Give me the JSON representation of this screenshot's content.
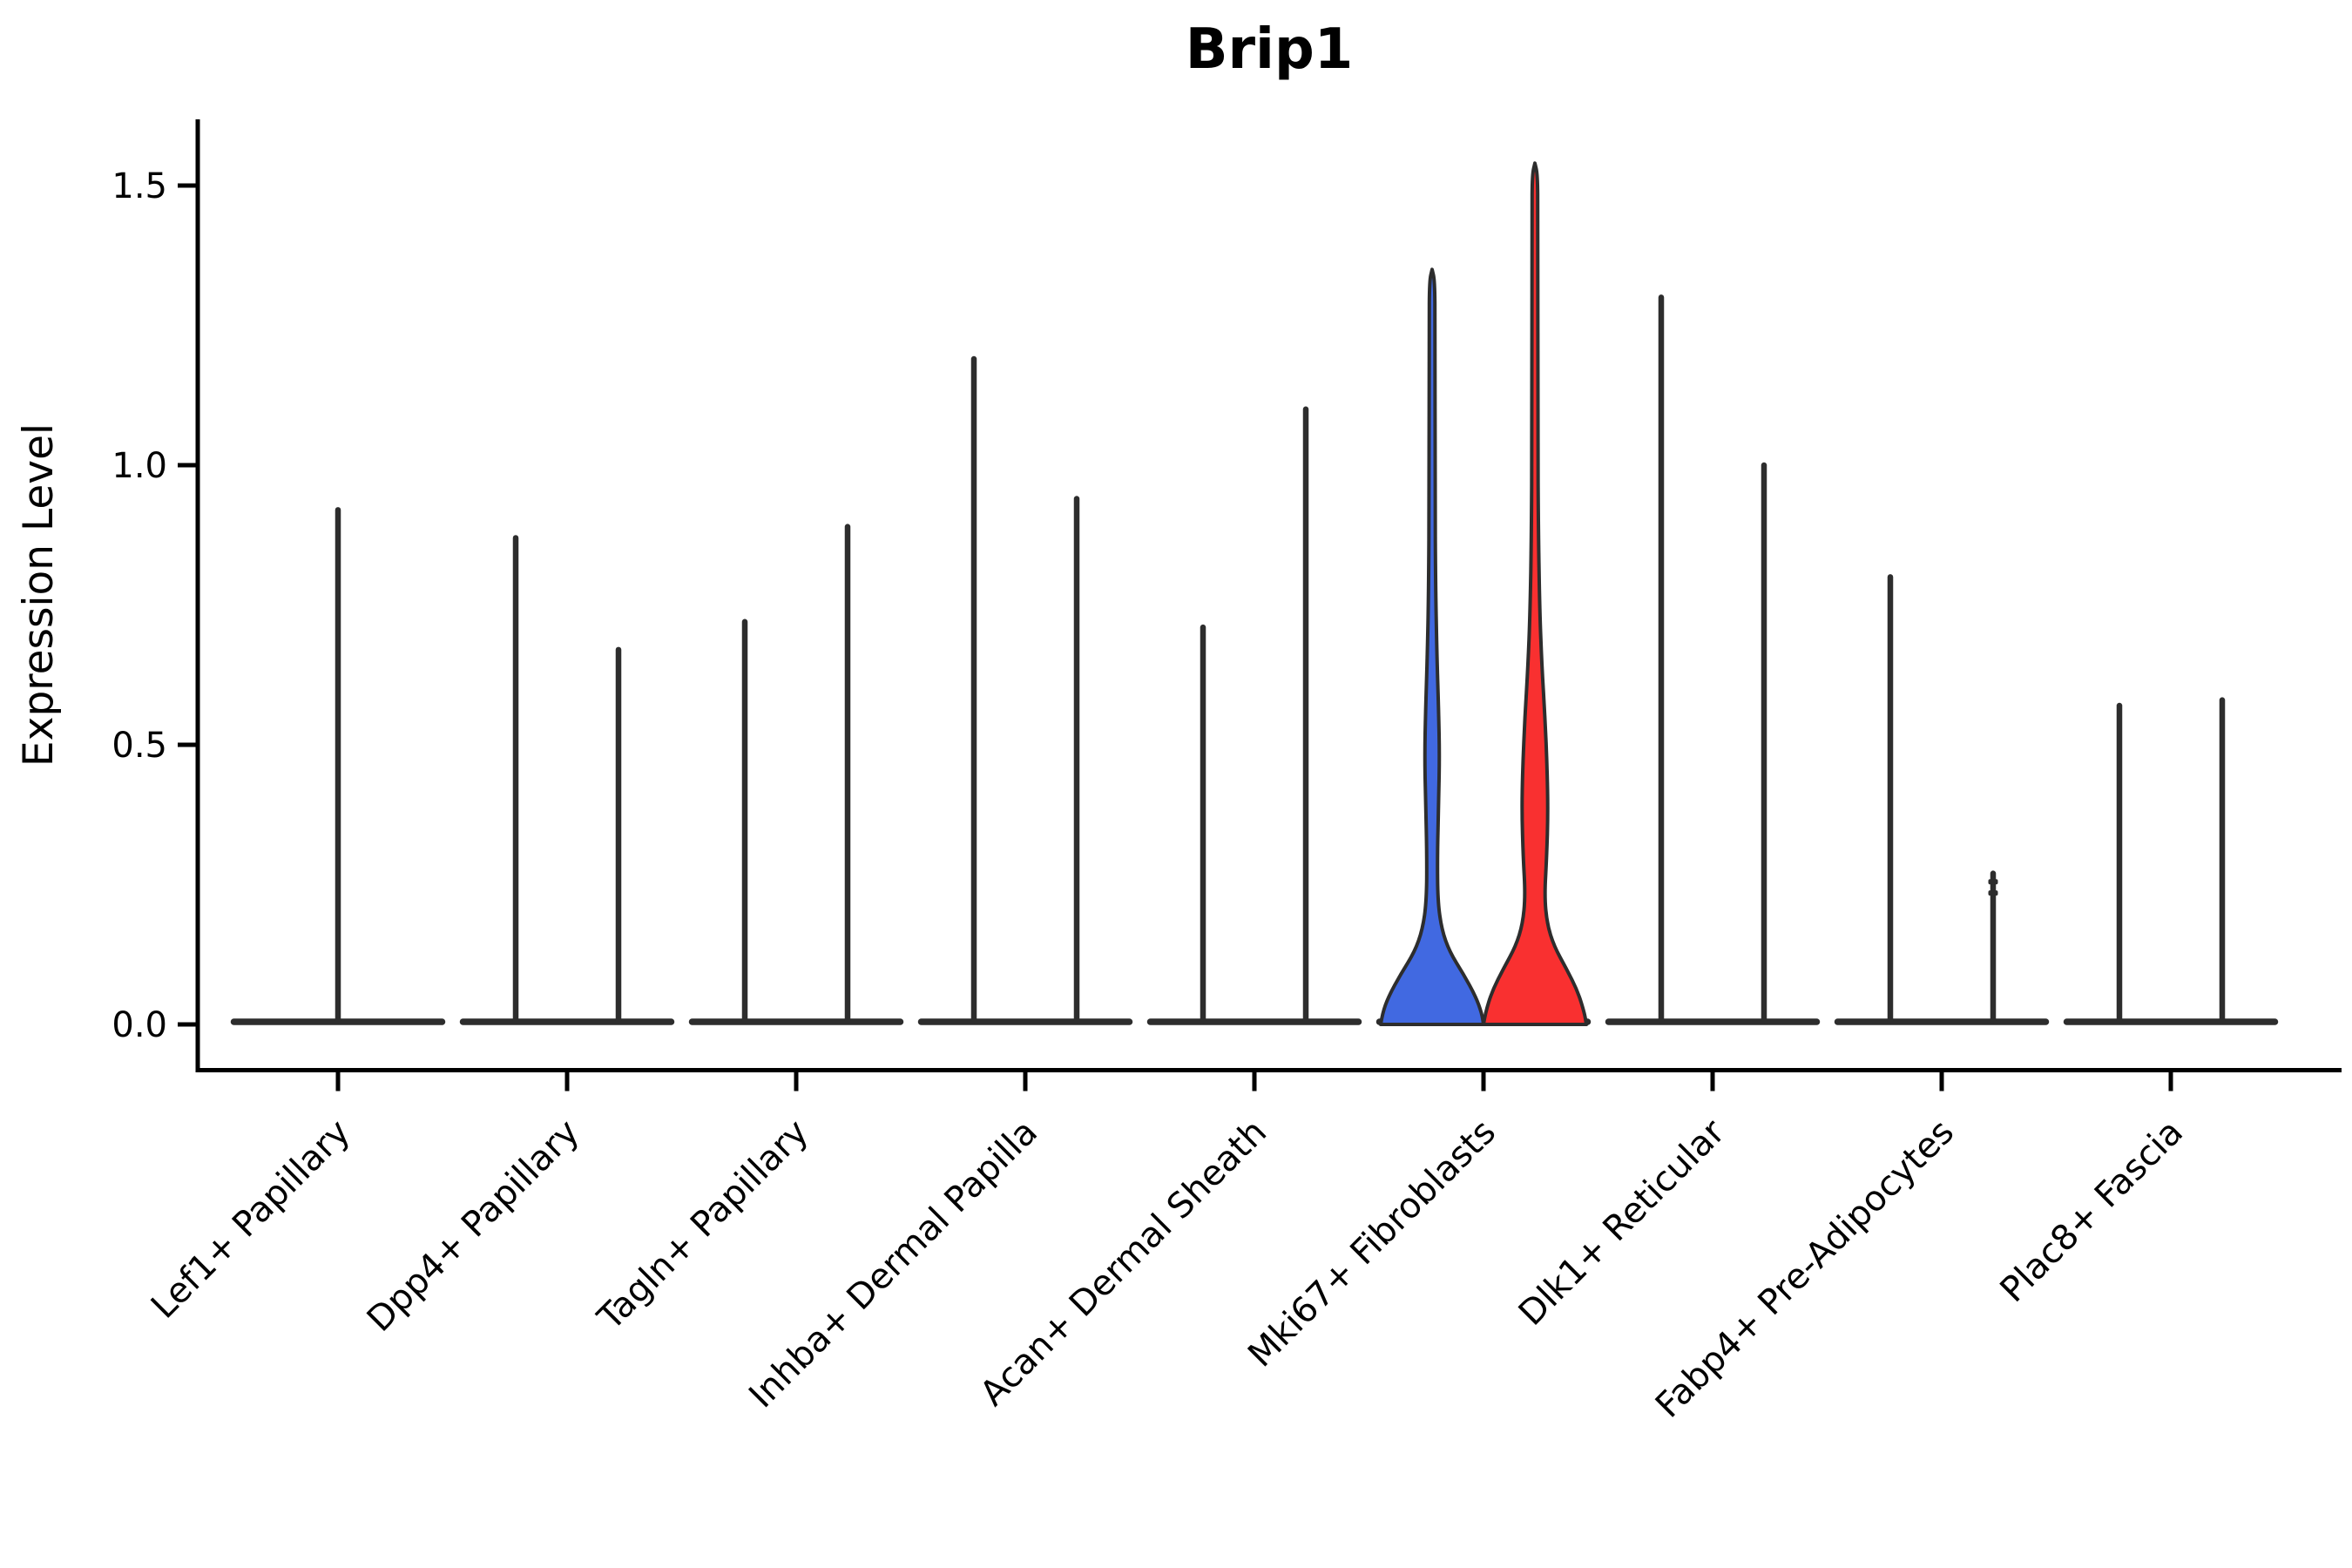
{
  "title": "Brip1",
  "axes": {
    "ylabel": "Expression Level",
    "ytick_labels": [
      "0.0",
      "0.5",
      "1.0",
      "1.5"
    ]
  },
  "colors": {
    "background": "#ffffff",
    "axis_line": "#000000",
    "violin_outline": "#2d2d2d",
    "blue_fill": "#4169E1",
    "red_fill": "#F93030"
  },
  "chart_data": {
    "type": "violin",
    "title": "Brip1",
    "xlabel": "",
    "ylabel": "Expression Level",
    "ylim": [
      0,
      1.62
    ],
    "yticks": [
      0,
      0.5,
      1,
      1.5
    ],
    "grid": false,
    "legend": "none",
    "categories": [
      "Lef1+ Papillary",
      "Dpp4+ Papillary",
      "Tagln+ Papillary",
      "Inhba+ Dermal Papilla",
      "Acan+ Dermal Sheath",
      "Mki67+ Fibroblasts",
      "Dlk1+ Reticular",
      "Fabp4+ Pre-Adipocytes",
      "Plac8+ Fascia"
    ],
    "description": "Split violin plot of Brip1 expression per fibroblast cluster; most violins are collapsed at 0 with a thin spike to the max expression value. Only Mki67+ Fibroblasts shows substantial filled violins (left blue, right red).",
    "violins": [
      {
        "category_index": 0,
        "side": "center",
        "max_expression": 0.92,
        "fill": null
      },
      {
        "category_index": 1,
        "side": "left",
        "max_expression": 0.87,
        "fill": null
      },
      {
        "category_index": 1,
        "side": "right",
        "max_expression": 0.67,
        "fill": null
      },
      {
        "category_index": 2,
        "side": "left",
        "max_expression": 0.72,
        "fill": null
      },
      {
        "category_index": 2,
        "side": "right",
        "max_expression": 0.89,
        "fill": null
      },
      {
        "category_index": 3,
        "side": "left",
        "max_expression": 1.19,
        "fill": null
      },
      {
        "category_index": 3,
        "side": "right",
        "max_expression": 0.94,
        "fill": null
      },
      {
        "category_index": 4,
        "side": "left",
        "max_expression": 0.71,
        "fill": null
      },
      {
        "category_index": 4,
        "side": "right",
        "max_expression": 1.1,
        "fill": null
      },
      {
        "category_index": 5,
        "side": "left",
        "max_expression": 1.35,
        "fill": "#4169E1",
        "profile": [
          [
            0,
            59
          ],
          [
            0.02,
            57
          ],
          [
            0.05,
            50
          ],
          [
            0.09,
            36
          ],
          [
            0.13,
            20
          ],
          [
            0.17,
            11
          ],
          [
            0.22,
            6.5
          ],
          [
            0.3,
            6
          ],
          [
            0.4,
            7.5
          ],
          [
            0.48,
            8.5
          ],
          [
            0.56,
            7.5
          ],
          [
            0.66,
            5.5
          ],
          [
            0.78,
            4
          ],
          [
            0.95,
            3.4
          ],
          [
            1.25,
            3.4
          ],
          [
            1.33,
            3
          ],
          [
            1.35,
            0
          ]
        ]
      },
      {
        "category_index": 5,
        "side": "right",
        "max_expression": 1.54,
        "fill": "#F93030",
        "profile": [
          [
            0,
            59
          ],
          [
            0.02,
            57
          ],
          [
            0.06,
            49
          ],
          [
            0.1,
            36
          ],
          [
            0.14,
            22
          ],
          [
            0.18,
            14
          ],
          [
            0.23,
            11
          ],
          [
            0.3,
            13.5
          ],
          [
            0.38,
            15
          ],
          [
            0.46,
            14
          ],
          [
            0.55,
            11.5
          ],
          [
            0.64,
            8
          ],
          [
            0.74,
            5.5
          ],
          [
            0.88,
            4
          ],
          [
            1.05,
            3.4
          ],
          [
            1.45,
            3.4
          ],
          [
            1.52,
            3
          ],
          [
            1.54,
            0
          ]
        ]
      },
      {
        "category_index": 6,
        "side": "left",
        "max_expression": 1.3,
        "fill": null
      },
      {
        "category_index": 6,
        "side": "right",
        "max_expression": 1.0,
        "fill": null
      },
      {
        "category_index": 7,
        "side": "left",
        "max_expression": 0.8,
        "fill": null
      },
      {
        "category_index": 7,
        "side": "right",
        "max_expression": 0.27,
        "fill": null,
        "knobs": [
          0.255,
          0.235
        ]
      },
      {
        "category_index": 8,
        "side": "left",
        "max_expression": 0.57,
        "fill": null
      },
      {
        "category_index": 8,
        "side": "right",
        "max_expression": 0.58,
        "fill": null
      }
    ]
  }
}
